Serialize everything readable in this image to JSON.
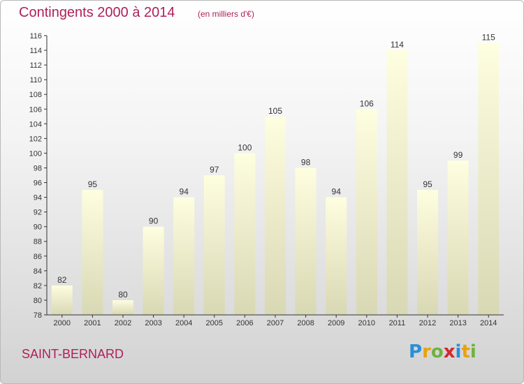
{
  "header": {
    "title": "Contingents 2000 à 2014",
    "subtitle": "(en milliers d'€)"
  },
  "footer": {
    "commune": "SAINT-BERNARD",
    "logo": {
      "letters": [
        "P",
        "r",
        "o",
        "x",
        "i",
        "t",
        "i"
      ],
      "colors": [
        "#2a8fd6",
        "#e8a20c",
        "#6db33f",
        "#d7262e",
        "#2a8fd6",
        "#e8a20c",
        "#6db33f"
      ]
    }
  },
  "chart_data": {
    "type": "bar",
    "categories": [
      "2000",
      "2001",
      "2002",
      "2003",
      "2004",
      "2005",
      "2006",
      "2007",
      "2008",
      "2009",
      "2010",
      "2011",
      "2012",
      "2013",
      "2014"
    ],
    "values": [
      82,
      95,
      80,
      90,
      94,
      97,
      100,
      105,
      98,
      94,
      106,
      114,
      95,
      99,
      115
    ],
    "ylim": [
      78,
      116
    ],
    "yticks": [
      78,
      80,
      82,
      84,
      86,
      88,
      90,
      92,
      94,
      96,
      98,
      100,
      102,
      104,
      106,
      108,
      110,
      112,
      114,
      116
    ],
    "grid": false,
    "data_labels": true,
    "bar_color_top": "#fefee0",
    "bar_color_bottom": "#d8d8b4",
    "axis_color": "#333333"
  }
}
